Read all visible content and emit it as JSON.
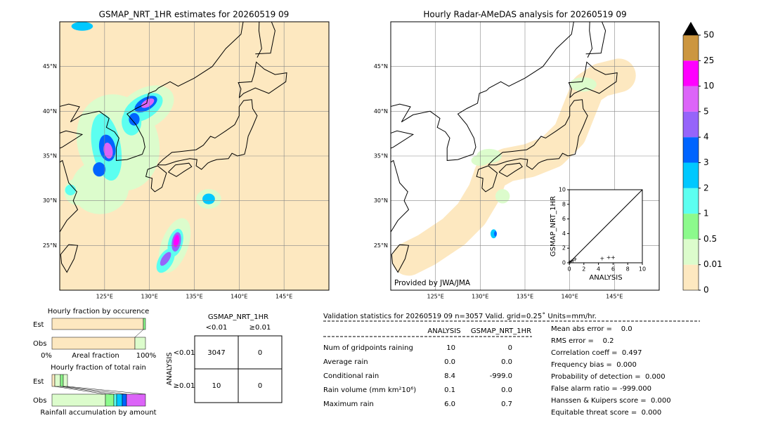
{
  "left_map": {
    "title": "GSMAP_NRT_1HR estimates for 20260519 09",
    "xlim": [
      120,
      150
    ],
    "ylim": [
      20,
      50
    ],
    "xticks": [
      {
        "value": 125,
        "label": "125°E"
      },
      {
        "value": 130,
        "label": "130°E"
      },
      {
        "value": 135,
        "label": "135°E"
      },
      {
        "value": 140,
        "label": "140°E"
      },
      {
        "value": 145,
        "label": "145°E"
      }
    ],
    "yticks": [
      {
        "value": 25,
        "label": "25°N"
      },
      {
        "value": 30,
        "label": "30°N"
      },
      {
        "value": 35,
        "label": "35°N"
      },
      {
        "value": 40,
        "label": "40°N"
      },
      {
        "value": 45,
        "label": "45°N"
      }
    ]
  },
  "right_map": {
    "title": "Hourly Radar-AMeDAS analysis for 20260519 09",
    "credit": "Provided by JWA/JMA",
    "xlim": [
      120,
      150
    ],
    "ylim": [
      20,
      50
    ],
    "xticks": [
      {
        "value": 125,
        "label": "125°E"
      },
      {
        "value": 130,
        "label": "130°E"
      },
      {
        "value": 135,
        "label": "135°E"
      },
      {
        "value": 140,
        "label": "140°E"
      },
      {
        "value": 145,
        "label": "145°E"
      }
    ],
    "yticks": [
      {
        "value": 25,
        "label": "25°N"
      },
      {
        "value": 30,
        "label": "30°N"
      },
      {
        "value": 35,
        "label": "35°N"
      },
      {
        "value": 40,
        "label": "40°N"
      },
      {
        "value": 45,
        "label": "45°N"
      }
    ]
  },
  "colorbar": {
    "ticks": [
      0,
      0.01,
      0.5,
      1,
      2,
      3,
      4,
      5,
      10,
      25,
      50
    ],
    "colors": [
      "#fde8c0",
      "#dcfccc",
      "#8cfa8c",
      "#5cfff0",
      "#00c8ff",
      "#0064ff",
      "#9664fa",
      "#dc64f8",
      "#ff00ff",
      "#cc9640"
    ],
    "extend_color": "#000000"
  },
  "scatter": {
    "xlabel": "ANALYSIS",
    "ylabel": "GSMAP_NRT_1HR",
    "xlim": [
      0,
      10
    ],
    "ylim": [
      0,
      10
    ],
    "xticks": [
      0,
      2,
      4,
      6,
      8,
      10
    ],
    "yticks": [
      0,
      2,
      4,
      6,
      8,
      10
    ],
    "x": [
      0.1,
      0.3,
      0.5,
      0.8,
      4.5,
      5.4,
      6.0
    ],
    "y": [
      0.1,
      0.2,
      0.3,
      0.5,
      0.6,
      0.7,
      0.7
    ]
  },
  "occurrence": {
    "title": "Hourly fraction by occurence",
    "rows": [
      "Est",
      "Obs"
    ],
    "axis_labels": [
      "0%",
      "Areal fraction",
      "100%"
    ]
  },
  "total_rain": {
    "title": "Hourly fraction of total rain",
    "rows": [
      "Est",
      "Obs"
    ],
    "footer": "Rainfall accumulation by amount"
  },
  "contingency": {
    "column_title": "GSMAP_NRT_1HR",
    "columns": [
      "<0.01",
      "≥0.01"
    ],
    "row_title": "ANALYSIS",
    "rows": [
      "<0.01",
      "≥0.01"
    ],
    "cells": [
      [
        "3047",
        "0"
      ],
      [
        "10",
        "0"
      ]
    ]
  },
  "validation": {
    "header": "Validation statistics for 20260519 09  n=3057 Valid. grid=0.25˚ Units=mm/hr.",
    "columns": [
      "ANALYSIS",
      "GSMAP_NRT_1HR"
    ],
    "rows": [
      {
        "label": "Num of gridpoints raining",
        "values": [
          "10",
          "0"
        ]
      },
      {
        "label": "Average rain",
        "values": [
          "0.0",
          "0.0"
        ]
      },
      {
        "label": "Conditional rain",
        "values": [
          "8.4",
          "-999.0"
        ]
      },
      {
        "label": "Rain volume (mm km²10⁶)",
        "values": [
          "0.1",
          "0.0"
        ]
      },
      {
        "label": "Maximum rain",
        "values": [
          "6.0",
          "0.7"
        ]
      }
    ],
    "scores": [
      "Mean abs error =    0.0",
      "RMS error =    0.2",
      "Correlation coeff =  0.497",
      "Frequency bias =  0.000",
      "Probability of detection =  0.000",
      "False alarm ratio = -999.000",
      "Hanssen & Kuipers score =  0.000",
      "Equitable threat score =  0.000"
    ]
  }
}
